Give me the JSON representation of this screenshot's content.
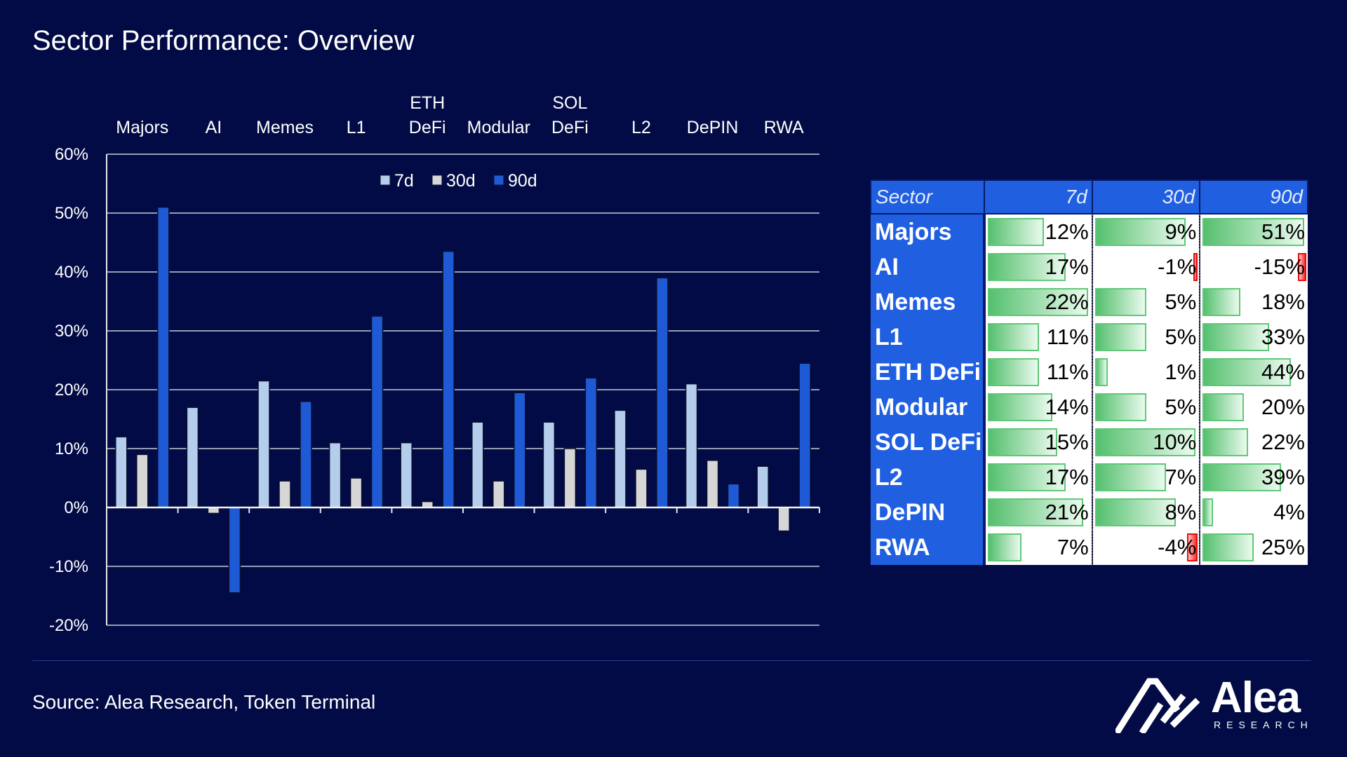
{
  "title": "Sector Performance: Overview",
  "source": "Source: Alea Research, Token Terminal",
  "logo": {
    "word": "Alea",
    "sub": "RESEARCH"
  },
  "colors": {
    "s7d": "#b4cdec",
    "s30d": "#d6d6d6",
    "s90d": "#1f5ad6",
    "background": "#020b45"
  },
  "chart_data": {
    "type": "bar",
    "categories": [
      [
        "Majors"
      ],
      [
        "AI"
      ],
      [
        "Memes"
      ],
      [
        "L1"
      ],
      [
        "ETH",
        "DeFi"
      ],
      [
        "Modular"
      ],
      [
        "SOL",
        "DeFi"
      ],
      [
        "L2"
      ],
      [
        "DePIN"
      ],
      [
        "RWA"
      ]
    ],
    "series": [
      {
        "name": "7d",
        "values": [
          12,
          17,
          21.5,
          11,
          11,
          14.5,
          14.5,
          16.5,
          21,
          7
        ]
      },
      {
        "name": "30d",
        "values": [
          9,
          -1,
          4.5,
          5,
          1,
          4.5,
          10,
          6.5,
          8,
          -4
        ]
      },
      {
        "name": "90d",
        "values": [
          51,
          -14.5,
          18,
          32.5,
          43.5,
          19.5,
          22,
          39,
          4,
          24.5
        ]
      }
    ],
    "yticks": [
      "60%",
      "50%",
      "40%",
      "30%",
      "20%",
      "10%",
      "0%",
      "-10%",
      "-20%"
    ],
    "ylim": [
      -20,
      60
    ],
    "grid": true,
    "legend_position": "top-center"
  },
  "table": {
    "headers": [
      "Sector",
      "7d",
      "30d",
      "90d"
    ],
    "rows": [
      {
        "sector": "Majors",
        "v7": "12%",
        "v30": "9%",
        "v90": "51%",
        "n7": 12,
        "n30": 9,
        "n90": 51
      },
      {
        "sector": "AI",
        "v7": "17%",
        "v30": "-1%",
        "v90": "-15%",
        "n7": 17,
        "n30": -1,
        "n90": -15
      },
      {
        "sector": "Memes",
        "v7": "22%",
        "v30": "5%",
        "v90": "18%",
        "n7": 22,
        "n30": 5,
        "n90": 18
      },
      {
        "sector": "L1",
        "v7": "11%",
        "v30": "5%",
        "v90": "33%",
        "n7": 11,
        "n30": 5,
        "n90": 33
      },
      {
        "sector": "ETH DeFi",
        "v7": "11%",
        "v30": "1%",
        "v90": "44%",
        "n7": 11,
        "n30": 1,
        "n90": 44
      },
      {
        "sector": "Modular",
        "v7": "14%",
        "v30": "5%",
        "v90": "20%",
        "n7": 14,
        "n30": 5,
        "n90": 20
      },
      {
        "sector": "SOL DeFi",
        "v7": "15%",
        "v30": "10%",
        "v90": "22%",
        "n7": 15,
        "n30": 10,
        "n90": 22
      },
      {
        "sector": "L2",
        "v7": "17%",
        "v30": "7%",
        "v90": "39%",
        "n7": 17,
        "n30": 7,
        "n90": 39
      },
      {
        "sector": "DePIN",
        "v7": "21%",
        "v30": "8%",
        "v90": "4%",
        "n7": 21,
        "n30": 8,
        "n90": 4
      },
      {
        "sector": "RWA",
        "v7": "7%",
        "v30": "-4%",
        "v90": "25%",
        "n7": 7,
        "n30": -4,
        "n90": 25
      }
    ]
  }
}
